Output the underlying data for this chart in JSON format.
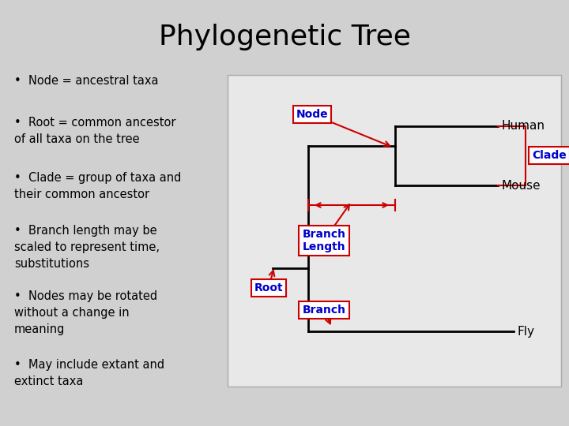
{
  "title": "Phylogenetic Tree",
  "background_color": "#d0d0d0",
  "diagram_bg": "#e8e8e8",
  "title_fontsize": 26,
  "bullet_points": [
    "Node = ancestral taxa",
    "Root = common ancestor\nof all taxa on the tree",
    "Clade = group of taxa and\ntheir common ancestor",
    "Branch length may be\nscaled to represent time,\nsubstitutions",
    "Nodes may be rotated\nwithout a change in\nmeaning",
    "May include extant and\nextinct taxa"
  ],
  "label_color": "#0000cc",
  "arrow_color": "#cc0000",
  "box_edge_color": "#cc0000",
  "tree_line_color": "#000000",
  "tree_lw": 2.0
}
